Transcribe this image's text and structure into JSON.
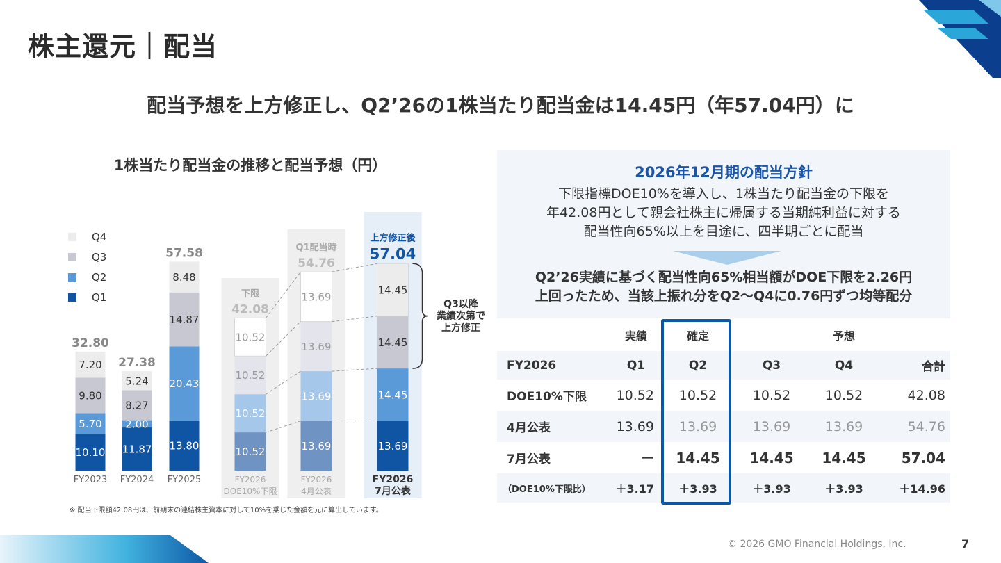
{
  "page_title": "株主還元｜配当",
  "headline": "配当予想を上方修正し、Q2’26の1株当たり配当金は14.45円（年57.04円）に",
  "chart_title": "1株当たり配当金の推移と配当予想（円）",
  "legend": [
    {
      "label": "Q4",
      "color": "#ececec"
    },
    {
      "label": "Q3",
      "color": "#c8c8d2"
    },
    {
      "label": "Q2",
      "color": "#5a9ad8"
    },
    {
      "label": "Q1",
      "color": "#0f55a4"
    }
  ],
  "chart_data": {
    "type": "bar",
    "stacked": true,
    "title": "1株当たり配当金の推移と配当予想（円）",
    "categories": [
      "FY2023",
      "FY2024",
      "FY2025",
      "FY2026 DOE10%下限",
      "FY2026 4月公表",
      "FY2026 7月公表"
    ],
    "category_labels": [
      [
        "FY2023"
      ],
      [
        "FY2024"
      ],
      [
        "FY2025"
      ],
      [
        "FY2026",
        "DOE10%下限"
      ],
      [
        "FY2026",
        "4月公表"
      ],
      [
        "FY2026",
        "7月公表"
      ]
    ],
    "series": [
      {
        "name": "Q1",
        "values": [
          10.1,
          11.87,
          13.8,
          10.52,
          13.69,
          13.69
        ]
      },
      {
        "name": "Q2",
        "values": [
          5.7,
          2.0,
          20.43,
          10.52,
          13.69,
          14.45
        ]
      },
      {
        "name": "Q3",
        "values": [
          9.8,
          8.27,
          14.87,
          10.52,
          13.69,
          14.45
        ]
      },
      {
        "name": "Q4",
        "values": [
          7.2,
          5.24,
          8.48,
          10.52,
          13.69,
          14.45
        ]
      }
    ],
    "totals": [
      "32.80",
      "27.38",
      "57.58",
      "42.08",
      "54.76",
      "57.04"
    ],
    "total_headers": [
      "",
      "",
      "",
      "下限",
      "Q1配当時",
      "上方修正後"
    ],
    "annotation": [
      "Q3以降",
      "業績次第で",
      "上方修正"
    ],
    "ylim": [
      0,
      60
    ]
  },
  "note": "※ 配当下限額42.08円は、前期末の連結株主資本に対して10%を乗じた金額を元に算出しています。",
  "policy": {
    "title": "2026年12月期の配当方針",
    "text_lines": [
      "下限指標DOE10%を導入し、1株当たり配当金の下限を",
      "年42.08円として親会社株主に帰属する当期純利益に対する",
      "配当性向65%以上を目途に、四半期ごとに配当"
    ],
    "result_lines": [
      "Q2’26実績に基づく配当性向65%相当額がDOE下限を2.26円",
      "上回ったため、当該上振れ分をQ2～Q4に0.76円ずつ均等配分"
    ]
  },
  "table": {
    "group_headers": {
      "actual": "実績",
      "fixed": "確定",
      "forecast": "予想"
    },
    "columns": [
      "FY2026",
      "Q1",
      "Q2",
      "Q3",
      "Q4",
      "合計"
    ],
    "rows": [
      {
        "label": "DOE10%下限",
        "values": [
          "10.52",
          "10.52",
          "10.52",
          "10.52",
          "42.08"
        ]
      },
      {
        "label": "4月公表",
        "values": [
          "13.69",
          "13.69",
          "13.69",
          "13.69",
          "54.76"
        ]
      },
      {
        "label": "7月公表",
        "values": [
          "ー",
          "14.45",
          "14.45",
          "14.45",
          "57.04"
        ]
      },
      {
        "label": "（DOE10%下限比）",
        "values": [
          "＋3.17",
          "＋3.93",
          "＋3.93",
          "＋3.93",
          "＋14.96"
        ]
      }
    ]
  },
  "footer": {
    "copyright": "© 2026 GMO Financial Holdings, Inc.",
    "page": "7"
  }
}
